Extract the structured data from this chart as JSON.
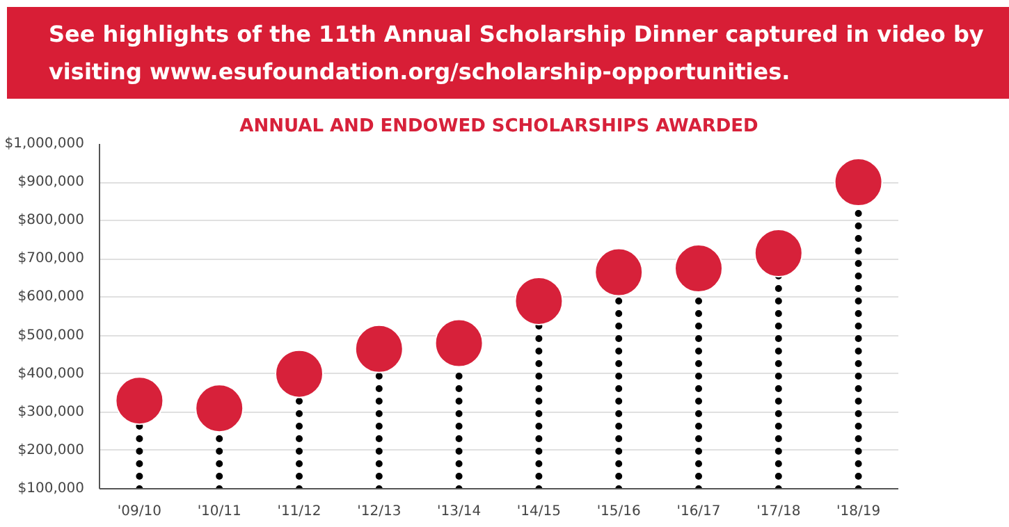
{
  "chart_data": {
    "type": "lollipop",
    "title": "ANNUAL AND ENDOWED SCHOLARSHIPS AWARDED",
    "annotations": [
      "See highlights of the 11th Annual Scholarship Dinner captured in video by visiting www.esufoundation.org/scholarship-opportunities."
    ],
    "categories": [
      "'09/10",
      "'10/11",
      "'11/12",
      "'12/13",
      "'13/14",
      "'14/15",
      "'15/16",
      "'16/17",
      "'17/18",
      "'18/19"
    ],
    "values": [
      330000,
      310000,
      400000,
      465000,
      480000,
      590000,
      665000,
      675000,
      715000,
      900000
    ],
    "color": "#d7213a",
    "marker": "circle",
    "line_style": "dotted",
    "grid": "y",
    "ylim": [
      100000,
      1000000
    ],
    "yticks": [
      {
        "value": 100000,
        "label": "$100,000"
      },
      {
        "value": 200000,
        "label": "$200,000"
      },
      {
        "value": 300000,
        "label": "$300,000"
      },
      {
        "value": 400000,
        "label": "$400,000"
      },
      {
        "value": 500000,
        "label": "$500,000"
      },
      {
        "value": 600000,
        "label": "$600,000"
      },
      {
        "value": 700000,
        "label": "$700,000"
      },
      {
        "value": 800000,
        "label": "$800,000"
      },
      {
        "value": 900000,
        "label": "$900,000"
      },
      {
        "value": 1000000,
        "label": "$1,000,000"
      }
    ]
  }
}
